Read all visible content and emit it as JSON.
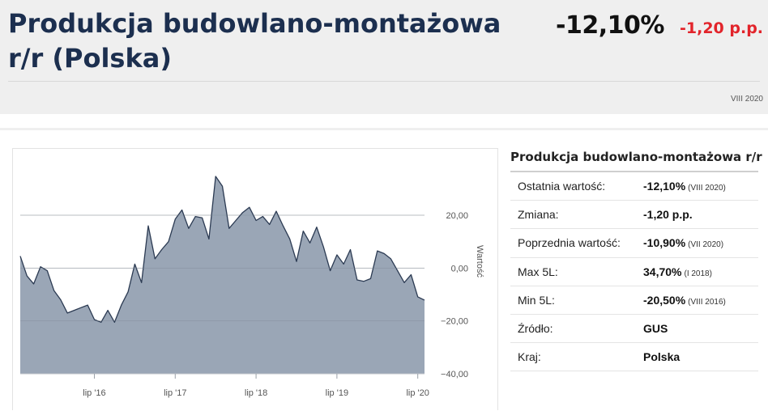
{
  "header": {
    "title": "Produkcja budowlano-montażowa r/r (Polska)",
    "value": "-12,10%",
    "change": "-1,20 p.p.",
    "date": "VIII 2020"
  },
  "colors": {
    "title": "#1c2f4f",
    "change_negative": "#e2242b",
    "area_fill": "#9aa6b6",
    "area_line": "#2b3a52"
  },
  "panel": {
    "title": "Produkcja budowlano-montażowa r/r",
    "rows": [
      {
        "label": "Ostatnia wartość:",
        "value": "-12,10%",
        "date": "(VIII 2020)"
      },
      {
        "label": "Zmiana:",
        "value": "-1,20 p.p.",
        "date": ""
      },
      {
        "label": "Poprzednia wartość:",
        "value": "-10,90%",
        "date": "(VII 2020)"
      },
      {
        "label": "Max 5L:",
        "value": "34,70%",
        "date": "(I 2018)"
      },
      {
        "label": "Min 5L:",
        "value": "-20,50%",
        "date": "(VIII 2016)"
      },
      {
        "label": "Źródło:",
        "value": "GUS",
        "date": ""
      },
      {
        "label": "Kraj:",
        "value": "Polska",
        "date": ""
      }
    ]
  },
  "chart_data": {
    "type": "area",
    "title": "",
    "xlabel": "",
    "ylabel": "Wartość",
    "ylim": [
      -40,
      35
    ],
    "yticks": [
      20,
      0,
      -20,
      -40
    ],
    "ytick_labels": [
      "20,00",
      "0,00",
      "−20,00",
      "−40,00"
    ],
    "xticks": [
      {
        "x": "2016-07",
        "label": "lip '16"
      },
      {
        "x": "2017-07",
        "label": "lip '17"
      },
      {
        "x": "2018-07",
        "label": "lip '18"
      },
      {
        "x": "2019-07",
        "label": "lip '19"
      },
      {
        "x": "2020-07",
        "label": "lip '20"
      }
    ],
    "grid": "horizontal",
    "legend": "none",
    "series": [
      {
        "x": [
          "2015-08",
          "2015-09",
          "2015-10",
          "2015-11",
          "2015-12",
          "2016-01",
          "2016-02",
          "2016-03",
          "2016-04",
          "2016-05",
          "2016-06",
          "2016-07",
          "2016-08",
          "2016-09",
          "2016-10",
          "2016-11",
          "2016-12",
          "2017-01",
          "2017-02",
          "2017-03",
          "2017-04",
          "2017-05",
          "2017-06",
          "2017-07",
          "2017-08",
          "2017-09",
          "2017-10",
          "2017-11",
          "2017-12",
          "2018-01",
          "2018-02",
          "2018-03",
          "2018-04",
          "2018-05",
          "2018-06",
          "2018-07",
          "2018-08",
          "2018-09",
          "2018-10",
          "2018-11",
          "2018-12",
          "2019-01",
          "2019-02",
          "2019-03",
          "2019-04",
          "2019-05",
          "2019-06",
          "2019-07",
          "2019-08",
          "2019-09",
          "2019-10",
          "2019-11",
          "2019-12",
          "2020-01",
          "2020-02",
          "2020-03",
          "2020-04",
          "2020-05",
          "2020-06",
          "2020-07",
          "2020-08"
        ],
        "values": [
          4.5,
          -3.0,
          -6.0,
          0.5,
          -1.0,
          -8.5,
          -12.0,
          -17.0,
          -16.0,
          -15.0,
          -14.0,
          -19.5,
          -20.5,
          -16.0,
          -20.5,
          -14.0,
          -9.0,
          1.5,
          -5.5,
          16.0,
          3.5,
          7.0,
          10.0,
          18.5,
          22.0,
          15.0,
          19.5,
          19.0,
          11.0,
          34.7,
          31.0,
          15.0,
          18.0,
          21.0,
          23.0,
          18.0,
          19.5,
          16.5,
          21.5,
          16.0,
          11.0,
          2.5,
          14.0,
          9.5,
          15.5,
          8.0,
          -1.0,
          5.0,
          1.5,
          7.0,
          -4.5,
          -5.0,
          -4.0,
          6.5,
          5.5,
          3.5,
          -1.0,
          -5.5,
          -2.5,
          -10.9,
          -12.1
        ]
      }
    ]
  }
}
